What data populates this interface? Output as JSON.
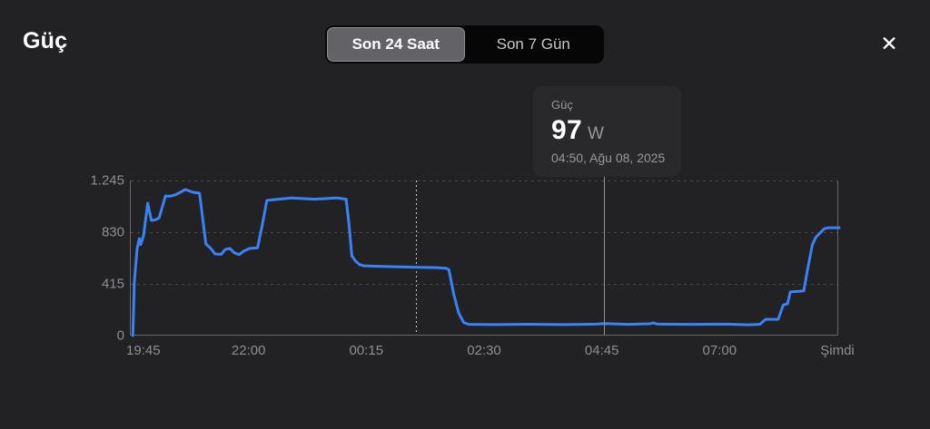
{
  "header": {
    "title": "Güç",
    "close_icon": "✕",
    "segmented_control": {
      "options": [
        {
          "label": "Son 24 Saat",
          "selected": true
        },
        {
          "label": "Son 7 Gün",
          "selected": false
        }
      ]
    }
  },
  "tooltip": {
    "label": "Güç",
    "value": "97",
    "unit": "W",
    "timestamp": "04:50, Ağu 08, 2025"
  },
  "chart_data": {
    "type": "line",
    "title": "Güç",
    "unit": "W",
    "line_color": "#3a82f7",
    "grid_color": "#48484b",
    "axis_color": "#68686d",
    "ylim": [
      0,
      1245
    ],
    "yticks": [
      1245,
      830,
      415,
      0
    ],
    "ytick_labels": [
      "1.245",
      "830",
      "415",
      "0"
    ],
    "xtick_labels": [
      "19:45",
      "22:00",
      "00:15",
      "02:30",
      "04:45",
      "07:00",
      "Şimdi"
    ],
    "selection": {
      "x_pct": 67.0,
      "time": "04:50",
      "value_w": 97
    },
    "dashed_marker_x_pct": 40.3,
    "points_x_pct_watts": [
      [
        0.3,
        0
      ],
      [
        0.5,
        430
      ],
      [
        0.9,
        700
      ],
      [
        1.2,
        779
      ],
      [
        1.4,
        730
      ],
      [
        1.8,
        800
      ],
      [
        2.4,
        1063
      ],
      [
        2.9,
        925
      ],
      [
        3.5,
        930
      ],
      [
        4.0,
        945
      ],
      [
        4.9,
        1121
      ],
      [
        5.5,
        1118
      ],
      [
        6.3,
        1130
      ],
      [
        7.7,
        1172
      ],
      [
        8.8,
        1150
      ],
      [
        9.7,
        1143
      ],
      [
        10.6,
        735
      ],
      [
        11.3,
        700
      ],
      [
        11.9,
        655
      ],
      [
        12.8,
        652
      ],
      [
        13.3,
        690
      ],
      [
        14.0,
        700
      ],
      [
        14.6,
        665
      ],
      [
        15.3,
        650
      ],
      [
        16.0,
        680
      ],
      [
        16.8,
        700
      ],
      [
        17.9,
        705
      ],
      [
        18.6,
        900
      ],
      [
        19.2,
        1085
      ],
      [
        20.1,
        1090
      ],
      [
        22.7,
        1105
      ],
      [
        25.9,
        1095
      ],
      [
        29.1,
        1105
      ],
      [
        30.4,
        1095
      ],
      [
        30.8,
        900
      ],
      [
        31.2,
        640
      ],
      [
        31.7,
        600
      ],
      [
        32.3,
        570
      ],
      [
        32.9,
        560
      ],
      [
        35.5,
        555
      ],
      [
        39.4,
        550
      ],
      [
        43.2,
        545
      ],
      [
        44.5,
        540
      ],
      [
        44.9,
        530
      ],
      [
        45.6,
        330
      ],
      [
        46.3,
        180
      ],
      [
        47.0,
        105
      ],
      [
        47.7,
        90
      ],
      [
        51.5,
        88
      ],
      [
        56.0,
        91
      ],
      [
        61.2,
        88
      ],
      [
        65.6,
        92
      ],
      [
        67.0,
        97
      ],
      [
        70.1,
        90
      ],
      [
        73.3,
        95
      ],
      [
        73.7,
        103
      ],
      [
        74.4,
        92
      ],
      [
        79.1,
        90
      ],
      [
        84.2,
        92
      ],
      [
        87.1,
        87
      ],
      [
        88.8,
        90
      ],
      [
        89.6,
        130
      ],
      [
        91.4,
        131
      ],
      [
        92.1,
        245
      ],
      [
        92.7,
        255
      ],
      [
        93.1,
        350
      ],
      [
        95.0,
        358
      ],
      [
        95.5,
        520
      ],
      [
        96.2,
        728
      ],
      [
        96.7,
        790
      ],
      [
        97.9,
        858
      ],
      [
        98.5,
        866
      ],
      [
        100,
        866
      ]
    ]
  }
}
